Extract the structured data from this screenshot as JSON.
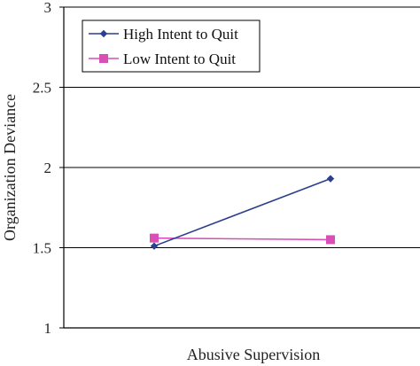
{
  "chart_data": {
    "type": "line",
    "title": "",
    "xlabel": "Abusive Supervision",
    "ylabel": "Organization Deviance",
    "ylim": [
      1,
      3
    ],
    "y_ticks": [
      "1",
      "1.5",
      "2",
      "2.5",
      "3"
    ],
    "grid": "horizontal",
    "legend_position": "top-left",
    "series": [
      {
        "name": "High Intent to Quit",
        "color": "#2b3f8f",
        "marker": "diamond",
        "values": [
          1.51,
          1.93
        ]
      },
      {
        "name": "Low Intent to Quit",
        "color": "#d94fb5",
        "marker": "square",
        "values": [
          1.56,
          1.55
        ]
      }
    ]
  }
}
